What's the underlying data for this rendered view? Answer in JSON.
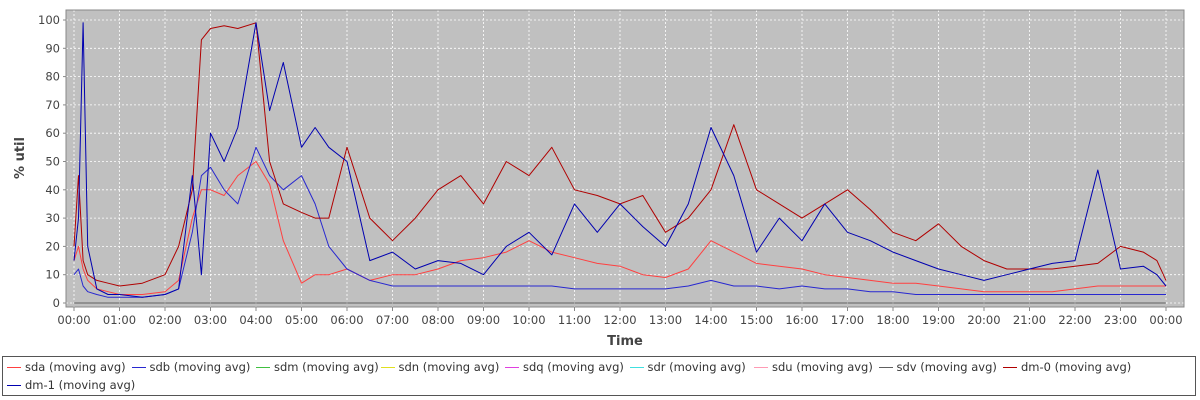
{
  "chart_data": {
    "type": "line",
    "title": "",
    "xlabel": "Time",
    "ylabel": "% util",
    "xlim": [
      "00:00",
      "24:00"
    ],
    "ylim": [
      0,
      100
    ],
    "yticks": [
      0,
      10,
      20,
      30,
      40,
      50,
      60,
      70,
      80,
      90,
      100
    ],
    "xticks": [
      "00:00",
      "01:00",
      "02:00",
      "03:00",
      "04:00",
      "05:00",
      "06:00",
      "07:00",
      "08:00",
      "09:00",
      "10:00",
      "11:00",
      "12:00",
      "13:00",
      "14:00",
      "15:00",
      "16:00",
      "17:00",
      "18:00",
      "19:00",
      "20:00",
      "21:00",
      "22:00",
      "23:00",
      "00:00"
    ],
    "grid": true,
    "background": "#c0c0c0",
    "legend_position": "bottom",
    "hours": [
      0.0,
      0.1,
      0.2,
      0.3,
      0.5,
      0.75,
      1.0,
      1.5,
      2.0,
      2.3,
      2.6,
      2.8,
      3.0,
      3.3,
      3.6,
      4.0,
      4.3,
      4.6,
      5.0,
      5.3,
      5.6,
      6.0,
      6.5,
      7.0,
      7.5,
      8.0,
      8.5,
      9.0,
      9.5,
      10.0,
      10.5,
      11.0,
      11.5,
      12.0,
      12.5,
      13.0,
      13.5,
      14.0,
      14.5,
      15.0,
      15.5,
      16.0,
      16.5,
      17.0,
      17.5,
      18.0,
      18.5,
      19.0,
      19.5,
      20.0,
      20.5,
      21.0,
      21.5,
      22.0,
      22.5,
      23.0,
      23.5,
      23.8,
      24.0
    ],
    "series": [
      {
        "name": "sda (moving avg)",
        "color": "#ff4040",
        "values": [
          15,
          20,
          12,
          8,
          5,
          4,
          3,
          3,
          4,
          8,
          30,
          40,
          40,
          38,
          45,
          50,
          42,
          22,
          7,
          10,
          10,
          12,
          8,
          10,
          10,
          12,
          15,
          16,
          18,
          22,
          18,
          16,
          14,
          13,
          10,
          9,
          12,
          22,
          18,
          14,
          13,
          12,
          10,
          9,
          8,
          7,
          7,
          6,
          5,
          4,
          4,
          4,
          4,
          5,
          6,
          6,
          6,
          6,
          6
        ]
      },
      {
        "name": "sdb (moving avg)",
        "color": "#2828d0",
        "values": [
          10,
          12,
          6,
          4,
          3,
          2,
          2,
          2,
          3,
          5,
          25,
          45,
          48,
          40,
          35,
          55,
          45,
          40,
          45,
          35,
          20,
          12,
          8,
          6,
          6,
          6,
          6,
          6,
          6,
          6,
          6,
          5,
          5,
          5,
          5,
          5,
          6,
          8,
          6,
          6,
          5,
          6,
          5,
          5,
          4,
          4,
          3,
          3,
          3,
          3,
          3,
          3,
          3,
          3,
          3,
          3,
          3,
          3,
          3
        ]
      },
      {
        "name": "sdm (moving avg)",
        "color": "#40c040",
        "values": [
          0,
          0,
          0,
          0,
          0,
          0,
          0,
          0,
          0,
          0,
          0,
          0,
          0,
          0,
          0,
          0,
          0,
          0,
          0,
          0,
          0,
          0,
          0,
          0,
          0,
          0,
          0,
          0,
          0,
          0,
          0,
          0,
          0,
          0,
          0,
          0,
          0,
          0,
          0,
          0,
          0,
          0,
          0,
          0,
          0,
          0,
          0,
          0,
          0,
          0,
          0,
          0,
          0,
          0,
          0,
          0,
          0,
          0,
          0
        ]
      },
      {
        "name": "sdn (moving avg)",
        "color": "#e0e020",
        "values": [
          0,
          0,
          0,
          0,
          0,
          0,
          0,
          0,
          0,
          0,
          0,
          0,
          0,
          0,
          0,
          0,
          0,
          0,
          0,
          0,
          0,
          0,
          0,
          0,
          0,
          0,
          0,
          0,
          0,
          0,
          0,
          0,
          0,
          0,
          0,
          0,
          0,
          0,
          0,
          0,
          0,
          0,
          0,
          0,
          0,
          0,
          0,
          0,
          0,
          0,
          0,
          0,
          0,
          0,
          0,
          0,
          0,
          0,
          0
        ]
      },
      {
        "name": "sdq (moving avg)",
        "color": "#e040e0",
        "values": [
          0,
          0,
          0,
          0,
          0,
          0,
          0,
          0,
          0,
          0,
          0,
          0,
          0,
          0,
          0,
          0,
          0,
          0,
          0,
          0,
          0,
          0,
          0,
          0,
          0,
          0,
          0,
          0,
          0,
          0,
          0,
          0,
          0,
          0,
          0,
          0,
          0,
          0,
          0,
          0,
          0,
          0,
          0,
          0,
          0,
          0,
          0,
          0,
          0,
          0,
          0,
          0,
          0,
          0,
          0,
          0,
          0,
          0,
          0
        ]
      },
      {
        "name": "sdr (moving avg)",
        "color": "#40e0e0",
        "values": [
          0,
          0,
          0,
          0,
          0,
          0,
          0,
          0,
          0,
          0,
          0,
          0,
          0,
          0,
          0,
          0,
          0,
          0,
          0,
          0,
          0,
          0,
          0,
          0,
          0,
          0,
          0,
          0,
          0,
          0,
          0,
          0,
          0,
          0,
          0,
          0,
          0,
          0,
          0,
          0,
          0,
          0,
          0,
          0,
          0,
          0,
          0,
          0,
          0,
          0,
          0,
          0,
          0,
          0,
          0,
          0,
          0,
          0,
          0
        ]
      },
      {
        "name": "sdu (moving avg)",
        "color": "#ff9ab4",
        "values": [
          0,
          0,
          0,
          0,
          0,
          0,
          0,
          0,
          0,
          0,
          0,
          0,
          0,
          0,
          0,
          0,
          0,
          0,
          0,
          0,
          0,
          0,
          0,
          0,
          0,
          0,
          0,
          0,
          0,
          0,
          0,
          0,
          0,
          0,
          0,
          0,
          0,
          0,
          0,
          0,
          0,
          0,
          0,
          0,
          0,
          0,
          0,
          0,
          0,
          0,
          0,
          0,
          0,
          0,
          0,
          0,
          0,
          0,
          0
        ]
      },
      {
        "name": "sdv (moving avg)",
        "color": "#606060",
        "values": [
          0,
          0,
          0,
          0,
          0,
          0,
          0,
          0,
          0,
          0,
          0,
          0,
          0,
          0,
          0,
          0,
          0,
          0,
          0,
          0,
          0,
          0,
          0,
          0,
          0,
          0,
          0,
          0,
          0,
          0,
          0,
          0,
          0,
          0,
          0,
          0,
          0,
          0,
          0,
          0,
          0,
          0,
          0,
          0,
          0,
          0,
          0,
          0,
          0,
          0,
          0,
          0,
          0,
          0,
          0,
          0,
          0,
          0,
          0
        ]
      },
      {
        "name": "dm-0 (moving avg)",
        "color": "#b00000",
        "values": [
          20,
          45,
          15,
          10,
          8,
          7,
          6,
          7,
          10,
          20,
          40,
          93,
          97,
          98,
          97,
          99,
          50,
          35,
          32,
          30,
          30,
          55,
          30,
          22,
          30,
          40,
          45,
          35,
          50,
          45,
          55,
          40,
          38,
          35,
          38,
          25,
          30,
          40,
          63,
          40,
          35,
          30,
          35,
          40,
          33,
          25,
          22,
          28,
          20,
          15,
          12,
          12,
          12,
          13,
          14,
          20,
          18,
          15,
          8
        ]
      },
      {
        "name": "dm-1 (moving avg)",
        "color": "#0000b0",
        "values": [
          15,
          30,
          99,
          20,
          5,
          3,
          3,
          2,
          3,
          5,
          45,
          10,
          60,
          50,
          62,
          99,
          68,
          85,
          55,
          62,
          55,
          50,
          15,
          18,
          12,
          15,
          14,
          10,
          20,
          25,
          17,
          35,
          25,
          35,
          27,
          20,
          35,
          62,
          45,
          18,
          30,
          22,
          35,
          25,
          22,
          18,
          15,
          12,
          10,
          8,
          10,
          12,
          14,
          15,
          47,
          12,
          13,
          10,
          6
        ]
      }
    ]
  }
}
